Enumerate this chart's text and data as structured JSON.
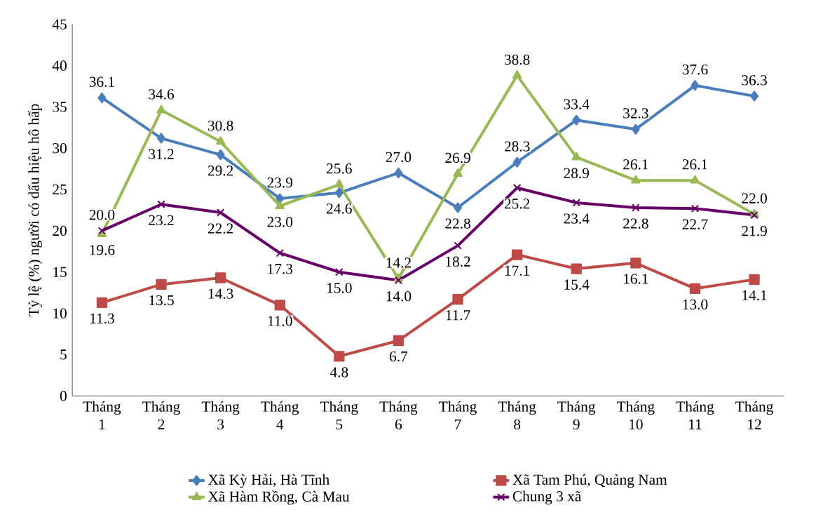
{
  "chart_data": {
    "type": "line",
    "ylabel": "Tỷ lệ (%) người có dấu hiệu hô hấp",
    "categories": [
      "Tháng 1",
      "Tháng 2",
      "Tháng 3",
      "Tháng 4",
      "Tháng 5",
      "Tháng 6",
      "Tháng 7",
      "Tháng 8",
      "Tháng 9",
      "Tháng 10",
      "Tháng 11",
      "Tháng 12"
    ],
    "ylim": [
      0,
      45
    ],
    "yticks": [
      0,
      5,
      10,
      15,
      20,
      25,
      30,
      35,
      40,
      45
    ],
    "legend": "bottom",
    "line_style": "solid",
    "series": [
      {
        "name": "Xã Kỳ Hải, Hà Tĩnh",
        "color": "#4a7ebb",
        "marker": "diamond",
        "values": [
          36.1,
          31.2,
          29.2,
          23.9,
          24.6,
          27.0,
          22.8,
          28.3,
          33.4,
          32.3,
          37.6,
          36.3
        ],
        "value_labels": [
          "36.1",
          "31.2",
          "29.2",
          "23.9",
          "24.6",
          "27.0",
          "22.8",
          "28.3",
          "33.4",
          "32.3",
          "37.6",
          "36.3"
        ]
      },
      {
        "name": "Xã Tam Phú, Quảng Nam",
        "color": "#be4b48",
        "marker": "square",
        "values": [
          11.3,
          13.5,
          14.3,
          11.0,
          4.8,
          6.7,
          11.7,
          17.1,
          15.4,
          16.1,
          13.0,
          14.1
        ],
        "value_labels": [
          "11.3",
          "13.5",
          "14.3",
          "11.0",
          "4.8",
          "6.7",
          "11.7",
          "17.1",
          "15.4",
          "16.1",
          "13.0",
          "14.1"
        ]
      },
      {
        "name": "Xã Hàm Rồng, Cà Mau",
        "color": "#98b954",
        "marker": "triangle",
        "values": [
          19.6,
          34.6,
          30.8,
          23.0,
          25.6,
          14.2,
          26.9,
          38.8,
          28.9,
          26.1,
          26.1,
          22.0
        ],
        "value_labels": [
          "19.6",
          "34.6",
          "30.8",
          "23.0",
          "25.6",
          "14.2",
          "26.9",
          "38.8",
          "28.9",
          "26.1",
          "26.1",
          "22.0"
        ]
      },
      {
        "name": "Chung 3 xã",
        "color": "#660066",
        "marker": "cross",
        "values": [
          20.0,
          23.2,
          22.2,
          17.3,
          15.0,
          14.0,
          18.2,
          25.2,
          23.4,
          22.8,
          22.7,
          21.9
        ],
        "value_labels": [
          "20.0",
          "23.2",
          "22.2",
          "17.3",
          "15.0",
          "14.0",
          "18.2",
          "25.2",
          "23.4",
          "22.8",
          "22.7",
          "21.9"
        ]
      }
    ]
  }
}
